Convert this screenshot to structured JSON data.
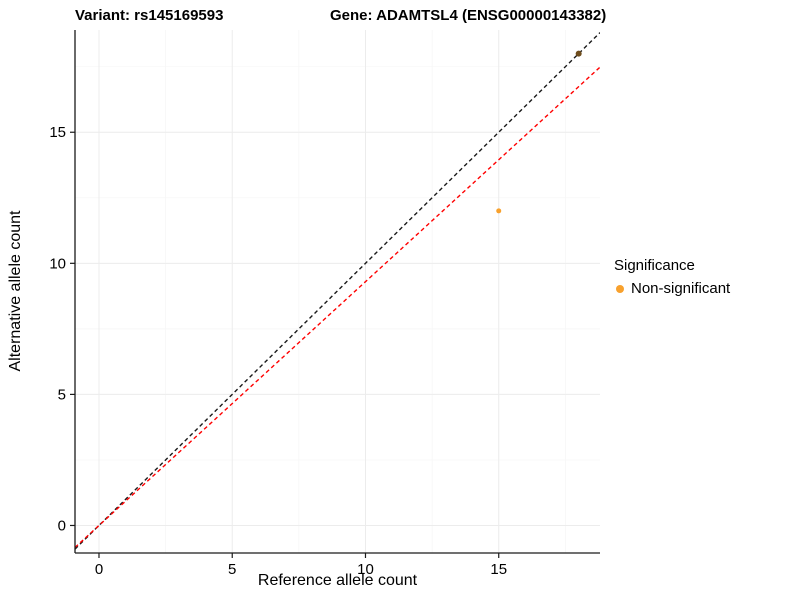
{
  "chart": {
    "title_left": "Variant: rs145169593",
    "title_right": "Gene: ADAMTSL4 (ENSG00000143382)",
    "xlabel": "Reference allele count",
    "ylabel": "Alternative allele count"
  },
  "legend": {
    "title": "Significance",
    "items": [
      {
        "label": "Non-significant",
        "color": "#F8A12D"
      }
    ]
  },
  "chart_data": {
    "type": "scatter",
    "title_left": "Variant: rs145169593",
    "title_right": "Gene: ADAMTSL4 (ENSG00000143382)",
    "xlabel": "Reference allele count",
    "ylabel": "Alternative allele count",
    "xlim": [
      -0.9,
      18.8
    ],
    "ylim": [
      -1.05,
      18.9
    ],
    "xticks": [
      0,
      5,
      10,
      15
    ],
    "yticks": [
      0,
      5,
      10,
      15
    ],
    "grid": {
      "major_color": "#ECECEC",
      "minor_color": "#F6F6F6",
      "minor_step": 2.5
    },
    "axis_color": "#1A1A1A",
    "points": [
      {
        "x": 15,
        "y": 12,
        "color": "#F8A12D",
        "r": 2.5,
        "series": "Non-significant"
      },
      {
        "x": 18,
        "y": 18,
        "color": "#6F4D1D",
        "r": 3,
        "series": "Non-significant"
      }
    ],
    "lines": [
      {
        "name": "identity",
        "slope": 1,
        "intercept": 0,
        "color": "#1A1A1A",
        "dash": "4 3"
      },
      {
        "name": "fit",
        "slope": 0.93,
        "intercept": 0,
        "color": "#FF0000",
        "dash": "4 3"
      }
    ]
  }
}
